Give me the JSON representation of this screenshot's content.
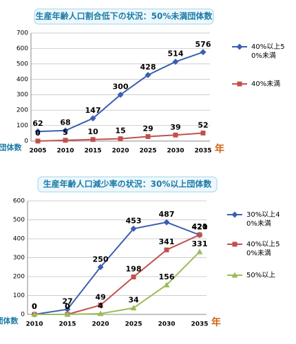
{
  "chart_data": [
    {
      "type": "line",
      "title": "生産年齢人口割合低下の状況：50%未満団体数",
      "categories": [
        "2005",
        "2010",
        "2015",
        "2020",
        "2025",
        "2030",
        "2035"
      ],
      "series": [
        {
          "name": "40%以上50%未満",
          "color": "#3a5fb0",
          "marker": "diamond",
          "values": [
            62,
            68,
            147,
            300,
            428,
            514,
            576
          ]
        },
        {
          "name": "40%未満",
          "color": "#c0504d",
          "marker": "square",
          "values": [
            0,
            5,
            10,
            15,
            29,
            39,
            52
          ]
        }
      ],
      "ylim": [
        0,
        700
      ],
      "yticks": [
        0,
        100,
        200,
        300,
        400,
        500,
        600,
        700
      ],
      "grid": true,
      "ylabel": "団体数",
      "xlabel": "年"
    },
    {
      "type": "line",
      "title": "生産年齢人口減少率の状況：30%以上団体数",
      "categories": [
        "2010",
        "2015",
        "2020",
        "2025",
        "2030",
        "2035"
      ],
      "series": [
        {
          "name": "30%以上40%未満",
          "color": "#3a5fb0",
          "marker": "diamond",
          "values": [
            0,
            27,
            250,
            453,
            487,
            420
          ]
        },
        {
          "name": "40%以上50%未満",
          "color": "#c0504d",
          "marker": "square",
          "values": [
            0,
            0,
            49,
            198,
            341,
            421
          ]
        },
        {
          "name": "50%以上",
          "color": "#9bbb59",
          "marker": "triangle",
          "values": [
            0,
            0,
            4,
            34,
            156,
            331
          ]
        }
      ],
      "ylim": [
        0,
        600
      ],
      "yticks": [
        0,
        100,
        200,
        300,
        400,
        500,
        600
      ],
      "grid": true,
      "ylabel": "団体数",
      "xlabel": "年"
    }
  ]
}
